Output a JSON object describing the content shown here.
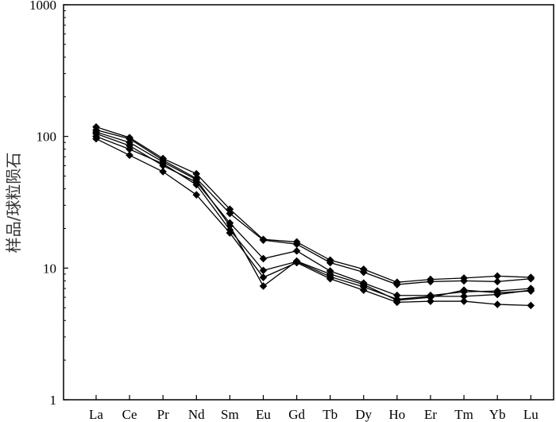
{
  "chart_data": {
    "type": "line",
    "scale": {
      "y": "log"
    },
    "ylim": [
      1,
      1000
    ],
    "ylabel": "样品/球粒陨石",
    "xlabel": "",
    "y_ticks": [
      "1",
      "10",
      "100",
      "1000"
    ],
    "categories": [
      "La",
      "Ce",
      "Pr",
      "Nd",
      "Sm",
      "Eu",
      "Gd",
      "Tb",
      "Dy",
      "Ho",
      "Er",
      "Tm",
      "Yb",
      "Lu"
    ],
    "grid": false,
    "legend": "none",
    "series": [
      {
        "values": [
          118,
          98,
          68,
          52,
          28,
          16.5,
          15.8,
          11.5,
          9.8,
          7.8,
          8.2,
          8.4,
          8.7,
          8.5
        ]
      },
      {
        "values": [
          112,
          96,
          66,
          48,
          26,
          16.3,
          15.2,
          11.0,
          9.3,
          7.5,
          7.9,
          8.0,
          7.9,
          8.3
        ]
      },
      {
        "values": [
          105,
          85,
          60,
          45,
          22,
          11.8,
          13.5,
          9.5,
          7.7,
          6.2,
          6.2,
          6.6,
          6.7,
          7.0
        ]
      },
      {
        "values": [
          100,
          80,
          62,
          43,
          19.5,
          9.6,
          11.2,
          8.6,
          7.2,
          5.8,
          6.1,
          6.1,
          6.3,
          6.8
        ]
      },
      {
        "values": [
          96,
          72,
          54,
          36,
          18.5,
          8.5,
          11.0,
          8.3,
          6.8,
          5.5,
          5.6,
          5.6,
          5.3,
          5.2
        ]
      },
      {
        "values": [
          108,
          90,
          64,
          47,
          21,
          7.3,
          11.3,
          9.0,
          7.5,
          5.7,
          6.0,
          6.8,
          6.5,
          6.7
        ]
      }
    ],
    "colors": {
      "line": "#000000",
      "marker": "#000000"
    }
  }
}
